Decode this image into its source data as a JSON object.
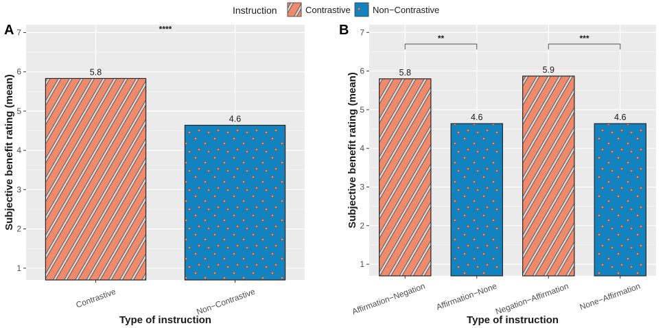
{
  "colors": {
    "contrastive": "#F08A6C",
    "non_contrastive": "#1383C0",
    "panel_bg": "#EBEBEB",
    "grid": "#FFFFFF"
  },
  "legend": {
    "title": "Instruction",
    "items": [
      {
        "label": "Contrastive",
        "pattern": "stripe"
      },
      {
        "label": "Non−Contrastive",
        "pattern": "dots"
      }
    ]
  },
  "chart_data": [
    {
      "panel": "A",
      "type": "bar",
      "xlabel": "Type of instruction",
      "ylabel": "Subjective benefit rating (mean)",
      "ylim": [
        0.7,
        7.2
      ],
      "yticks": [
        1,
        2,
        3,
        4,
        5,
        6,
        7
      ],
      "categories": [
        "Contrastive",
        "Non−Contrastive"
      ],
      "values": [
        5.83,
        4.64
      ],
      "labels": [
        "5.8",
        "4.6"
      ],
      "fills": [
        "stripe",
        "dots"
      ],
      "significance": [
        {
          "from": 0,
          "to": 1,
          "text": "****",
          "y": 6.95,
          "bracket": false
        }
      ]
    },
    {
      "panel": "B",
      "type": "bar",
      "xlabel": "Type of instruction",
      "ylabel": "Subjective benefit rating (mean)",
      "ylim": [
        0.7,
        7.2
      ],
      "yticks": [
        1,
        2,
        3,
        4,
        5,
        6,
        7
      ],
      "categories": [
        "Affirmation−Negation",
        "Affirmation−None",
        "Negation−Affirmation",
        "None−Affirmation"
      ],
      "values": [
        5.8,
        4.64,
        5.87,
        4.64
      ],
      "labels": [
        "5.8",
        "4.6",
        "5.9",
        "4.6"
      ],
      "fills": [
        "stripe",
        "dots",
        "stripe",
        "dots"
      ],
      "significance": [
        {
          "from": 0,
          "to": 1,
          "text": "**",
          "y": 6.7,
          "bracket": true
        },
        {
          "from": 2,
          "to": 3,
          "text": "***",
          "y": 6.7,
          "bracket": true
        }
      ]
    }
  ]
}
